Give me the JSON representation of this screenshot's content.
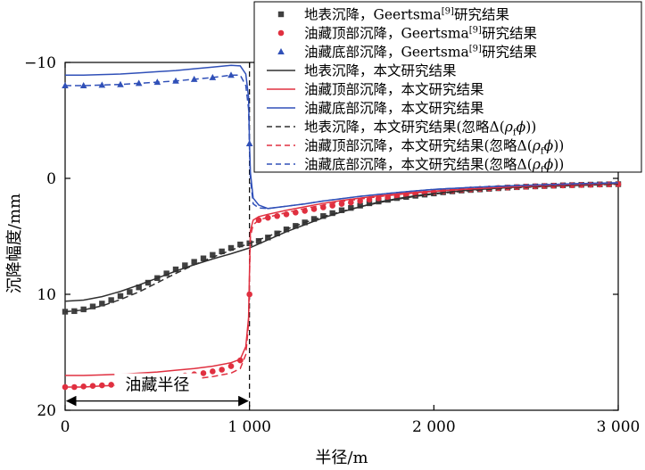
{
  "chart_data": {
    "type": "line",
    "xlabel": "半径/m",
    "ylabel": "沉降幅度/mm",
    "xlim": [
      0,
      3000
    ],
    "ylim": [
      -10,
      20
    ],
    "y_inverted_display": true,
    "grid": false,
    "legend_position": "top-right",
    "x_ticks": [
      {
        "value": 0,
        "label": "0"
      },
      {
        "value": 1000,
        "label": "1 000"
      },
      {
        "value": 2000,
        "label": "2 000"
      },
      {
        "value": 3000,
        "label": "3 000"
      }
    ],
    "y_ticks": [
      {
        "value": -10,
        "label": "−10"
      },
      {
        "value": 0,
        "label": "0"
      },
      {
        "value": 10,
        "label": "10"
      },
      {
        "value": 20,
        "label": "20"
      }
    ],
    "annotation": {
      "text": "油藏半径",
      "from_x": 0,
      "to_x": 1000,
      "y": 19.2
    },
    "vline_x": 1000,
    "series": [
      {
        "name": "地表沉降，Geertsma[9]研究结果",
        "kind": "marker",
        "marker": "square",
        "color": "#404040",
        "x": [
          0,
          50,
          100,
          150,
          200,
          250,
          300,
          350,
          400,
          450,
          500,
          550,
          600,
          650,
          700,
          750,
          800,
          850,
          900,
          950,
          1000,
          1050,
          1100,
          1150,
          1200,
          1250,
          1300,
          1350,
          1400,
          1450,
          1500,
          1550,
          1600,
          1650,
          1700,
          1750,
          1800,
          1850,
          1900,
          1950,
          2000,
          2050,
          2100,
          2150,
          2200,
          2250,
          2300,
          2350,
          2400,
          2450,
          2500,
          2550,
          2600,
          2650,
          2700,
          2750,
          2800,
          2850,
          2900,
          2950,
          3000
        ],
        "y": [
          11.5,
          11.45,
          11.3,
          11.05,
          10.8,
          10.5,
          10.15,
          9.8,
          9.4,
          9.0,
          8.6,
          8.2,
          7.85,
          7.5,
          7.2,
          6.9,
          6.6,
          6.3,
          6.0,
          5.7,
          5.6,
          5.4,
          5.1,
          4.75,
          4.4,
          4.1,
          3.8,
          3.5,
          3.25,
          3.0,
          2.75,
          2.55,
          2.35,
          2.15,
          2.0,
          1.85,
          1.7,
          1.6,
          1.5,
          1.4,
          1.3,
          1.2,
          1.12,
          1.05,
          1.0,
          0.95,
          0.9,
          0.85,
          0.8,
          0.76,
          0.72,
          0.69,
          0.66,
          0.63,
          0.6,
          0.58,
          0.56,
          0.54,
          0.52,
          0.51,
          0.5
        ]
      },
      {
        "name": "油藏顶部沉降，Geertsma[9]研究结果",
        "kind": "marker",
        "marker": "circle",
        "color": "#e03040",
        "x": [
          0,
          50,
          100,
          150,
          200,
          250,
          300,
          350,
          400,
          450,
          500,
          550,
          600,
          650,
          700,
          750,
          800,
          850,
          900,
          950,
          1000,
          1050,
          1100,
          1150,
          1200,
          1250,
          1300,
          1350,
          1400,
          1450,
          1500,
          1550,
          1600,
          1650,
          1700,
          1750,
          1800,
          1850,
          1900,
          1950,
          2000,
          2050,
          2100,
          2150,
          2200,
          2250,
          2300,
          2350,
          2400,
          2450,
          2500,
          2550,
          2600,
          2650,
          2700,
          2750,
          2800,
          2850,
          2900,
          2950,
          3000
        ],
        "y": [
          18.0,
          18.0,
          17.95,
          17.9,
          17.85,
          17.8,
          17.7,
          17.6,
          17.5,
          17.4,
          17.3,
          17.2,
          17.1,
          17.0,
          16.9,
          16.8,
          16.65,
          16.5,
          16.2,
          15.7,
          10.0,
          3.6,
          3.4,
          3.25,
          3.1,
          2.95,
          2.8,
          2.65,
          2.5,
          2.35,
          2.2,
          2.08,
          1.95,
          1.83,
          1.72,
          1.62,
          1.52,
          1.44,
          1.36,
          1.28,
          1.2,
          1.13,
          1.07,
          1.01,
          0.96,
          0.91,
          0.87,
          0.83,
          0.79,
          0.75,
          0.72,
          0.69,
          0.66,
          0.63,
          0.61,
          0.59,
          0.57,
          0.55,
          0.53,
          0.51,
          0.5
        ]
      },
      {
        "name": "油藏底部沉降，Geertsma[9]研究结果",
        "kind": "marker",
        "marker": "triangle",
        "color": "#3050b8",
        "x": [
          0,
          100,
          200,
          300,
          400,
          500,
          600,
          700,
          800,
          900,
          1000
        ],
        "y": [
          -8.0,
          -8.0,
          -8.05,
          -8.1,
          -8.2,
          -8.3,
          -8.4,
          -8.55,
          -8.7,
          -8.9,
          -3.0
        ]
      },
      {
        "name": "地表沉降，本文研究结果",
        "kind": "line",
        "dash": "solid",
        "color": "#303030",
        "x": [
          0,
          100,
          200,
          300,
          400,
          500,
          600,
          700,
          800,
          900,
          1000,
          1100,
          1200,
          1300,
          1400,
          1500,
          1600,
          1700,
          1800,
          1900,
          2000,
          2200,
          2400,
          2600,
          2800,
          3000
        ],
        "y": [
          10.6,
          10.5,
          10.2,
          9.75,
          9.2,
          8.6,
          8.0,
          7.45,
          6.95,
          6.5,
          6.0,
          5.3,
          4.6,
          4.0,
          3.4,
          2.9,
          2.45,
          2.05,
          1.75,
          1.5,
          1.3,
          1.0,
          0.8,
          0.65,
          0.55,
          0.45
        ]
      },
      {
        "name": "油藏顶部沉降，本文研究结果",
        "kind": "line",
        "dash": "solid",
        "color": "#e03040",
        "x": [
          0,
          100,
          200,
          300,
          400,
          500,
          600,
          700,
          800,
          900,
          950,
          980,
          995,
          1000,
          1005,
          1020,
          1050,
          1100,
          1200,
          1300,
          1400,
          1500,
          1600,
          1700,
          1800,
          1900,
          2000,
          2200,
          2400,
          2600,
          2800,
          3000
        ],
        "y": [
          17.0,
          17.0,
          16.95,
          16.9,
          16.8,
          16.7,
          16.55,
          16.4,
          16.2,
          15.9,
          15.6,
          14.5,
          12.0,
          8.0,
          4.5,
          3.6,
          3.3,
          3.1,
          2.75,
          2.45,
          2.15,
          1.9,
          1.7,
          1.5,
          1.35,
          1.2,
          1.1,
          0.9,
          0.75,
          0.6,
          0.5,
          0.4
        ]
      },
      {
        "name": "油藏底部沉降，本文研究结果",
        "kind": "line",
        "dash": "solid",
        "color": "#3050b8",
        "x": [
          0,
          100,
          200,
          300,
          400,
          500,
          600,
          700,
          800,
          900,
          950,
          980,
          995,
          1000,
          1005,
          1020,
          1050,
          1100,
          1200,
          1300,
          1400,
          1500,
          1600,
          1700,
          1800,
          1900,
          2000,
          2200,
          2400,
          2600,
          2800,
          3000
        ],
        "y": [
          -8.9,
          -8.9,
          -8.95,
          -9.0,
          -9.1,
          -9.2,
          -9.3,
          -9.45,
          -9.6,
          -9.75,
          -9.7,
          -9.0,
          -7.0,
          -3.0,
          -0.5,
          1.7,
          2.3,
          2.6,
          2.4,
          2.2,
          1.95,
          1.75,
          1.55,
          1.38,
          1.22,
          1.08,
          0.95,
          0.78,
          0.65,
          0.55,
          0.45,
          0.38
        ]
      },
      {
        "name": "地表沉降，本文研究结果(忽略Δ(ρfϕ))",
        "kind": "line",
        "dash": "dashed",
        "color": "#303030",
        "x": [
          0,
          100,
          200,
          300,
          400,
          500,
          600,
          700,
          800,
          900,
          1000,
          1100,
          1200,
          1300,
          1400,
          1500,
          1600,
          1700,
          1800,
          1900,
          2000,
          2200,
          2400,
          2600,
          2800,
          3000
        ],
        "y": [
          11.5,
          11.35,
          11.0,
          10.45,
          9.8,
          9.0,
          8.2,
          7.45,
          6.8,
          6.2,
          5.6,
          5.0,
          4.4,
          3.8,
          3.3,
          2.85,
          2.45,
          2.1,
          1.8,
          1.55,
          1.35,
          1.05,
          0.85,
          0.7,
          0.6,
          0.5
        ]
      },
      {
        "name": "油藏顶部沉降，本文研究结果(忽略Δ(ρfϕ))",
        "kind": "line",
        "dash": "dashed",
        "color": "#e03040",
        "x": [
          0,
          100,
          200,
          300,
          400,
          500,
          600,
          700,
          800,
          900,
          950,
          980,
          995,
          1000,
          1005,
          1020,
          1050,
          1100,
          1200,
          1300,
          1400,
          1500,
          1600,
          1700,
          1800,
          1900,
          2000,
          2200,
          2400,
          2600,
          2800,
          3000
        ],
        "y": [
          18.0,
          18.0,
          17.9,
          17.85,
          17.75,
          17.6,
          17.45,
          17.3,
          17.1,
          16.8,
          16.4,
          15.2,
          12.5,
          8.5,
          5.0,
          4.0,
          3.6,
          3.35,
          2.95,
          2.6,
          2.3,
          2.0,
          1.78,
          1.58,
          1.4,
          1.25,
          1.12,
          0.92,
          0.76,
          0.62,
          0.52,
          0.42
        ]
      },
      {
        "name": "油藏底部沉降，本文研究结果(忽略Δ(ρfϕ))",
        "kind": "line",
        "dash": "dashed",
        "color": "#3050b8",
        "x": [
          0,
          100,
          200,
          300,
          400,
          500,
          600,
          700,
          800,
          900,
          950,
          980,
          995,
          1000,
          1005,
          1020,
          1050,
          1100,
          1200,
          1300,
          1400,
          1500,
          1600,
          1700,
          1800,
          1900,
          2000,
          2200,
          2400,
          2600,
          2800,
          3000
        ],
        "y": [
          -8.0,
          -8.0,
          -8.05,
          -8.1,
          -8.2,
          -8.3,
          -8.4,
          -8.55,
          -8.7,
          -8.9,
          -8.9,
          -8.0,
          -6.0,
          -2.5,
          0.0,
          2.2,
          2.55,
          2.6,
          2.4,
          2.2,
          1.95,
          1.75,
          1.55,
          1.38,
          1.22,
          1.08,
          0.95,
          0.78,
          0.65,
          0.55,
          0.45,
          0.38
        ]
      }
    ],
    "legend": [
      {
        "series_index": 0,
        "parts": [
          {
            "t": "地表沉降，Geertsma"
          },
          {
            "t": "[9]",
            "sup": true
          },
          {
            "t": "研究结果"
          }
        ]
      },
      {
        "series_index": 1,
        "parts": [
          {
            "t": "油藏顶部沉降，Geertsma"
          },
          {
            "t": "[9]",
            "sup": true
          },
          {
            "t": "研究结果"
          }
        ]
      },
      {
        "series_index": 2,
        "parts": [
          {
            "t": "油藏底部沉降，Geertsma"
          },
          {
            "t": "[9]",
            "sup": true
          },
          {
            "t": "研究结果"
          }
        ]
      },
      {
        "series_index": 3,
        "parts": [
          {
            "t": "地表沉降，本文研究结果"
          }
        ]
      },
      {
        "series_index": 4,
        "parts": [
          {
            "t": "油藏顶部沉降，本文研究结果"
          }
        ]
      },
      {
        "series_index": 5,
        "parts": [
          {
            "t": "油藏底部沉降，本文研究结果"
          }
        ]
      },
      {
        "series_index": 6,
        "parts": [
          {
            "t": "地表沉降，本文研究结果(忽略Δ("
          },
          {
            "t": "ρ",
            "it": true
          },
          {
            "t": "f",
            "sub": true
          },
          {
            "t": "ϕ",
            "it": true
          },
          {
            "t": "))"
          }
        ]
      },
      {
        "series_index": 7,
        "parts": [
          {
            "t": "油藏顶部沉降，本文研究结果(忽略Δ("
          },
          {
            "t": "ρ",
            "it": true
          },
          {
            "t": "f",
            "sub": true
          },
          {
            "t": "ϕ",
            "it": true
          },
          {
            "t": "))"
          }
        ]
      },
      {
        "series_index": 8,
        "parts": [
          {
            "t": "油藏底部沉降，本文研究结果(忽略Δ("
          },
          {
            "t": "ρ",
            "it": true
          },
          {
            "t": "f",
            "sub": true
          },
          {
            "t": "ϕ",
            "it": true
          },
          {
            "t": "))"
          }
        ]
      }
    ]
  }
}
